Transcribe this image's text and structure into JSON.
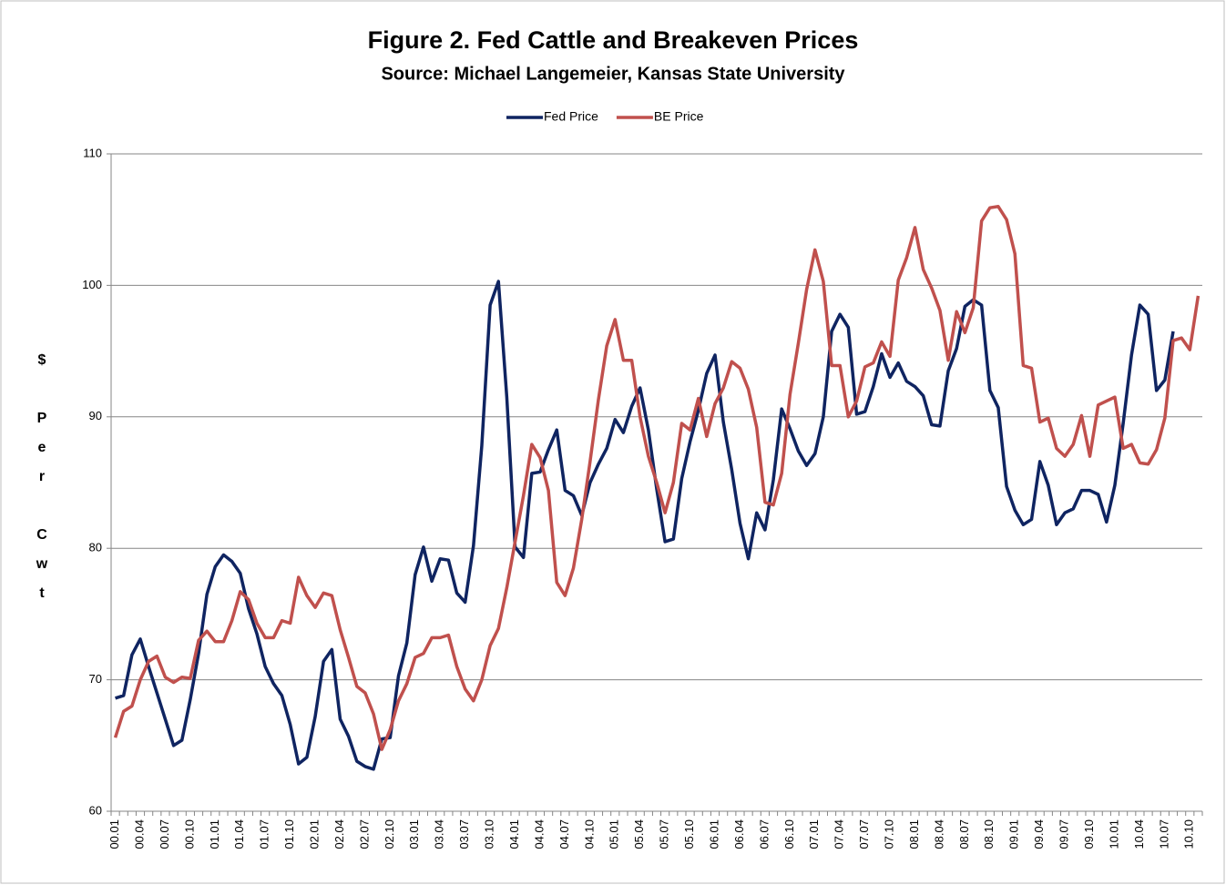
{
  "chart_data": {
    "type": "line",
    "title": "Figure 2.  Fed Cattle and Breakeven Prices",
    "subtitle": "Source:  Michael Langemeier, Kansas State University",
    "y_label": "$ Per Cwt",
    "categories": [
      "00.01",
      null,
      null,
      "00.04",
      null,
      null,
      "00.07",
      null,
      null,
      "00.10",
      null,
      null,
      "01.01",
      null,
      null,
      "01.04",
      null,
      null,
      "01.07",
      null,
      null,
      "01.10",
      null,
      null,
      "02.01",
      null,
      null,
      "02.04",
      null,
      null,
      "02.07",
      null,
      null,
      "02.10",
      null,
      null,
      "03.01",
      null,
      null,
      "03.04",
      null,
      null,
      "03.07",
      null,
      null,
      "03.10",
      null,
      null,
      "04.01",
      null,
      null,
      "04.04",
      null,
      null,
      "04.07",
      null,
      null,
      "04.10",
      null,
      null,
      "05.01",
      null,
      null,
      "05.04",
      null,
      null,
      "05.07",
      null,
      null,
      "05.10",
      null,
      null,
      "06.01",
      null,
      null,
      "06.04",
      null,
      null,
      "06.07",
      null,
      null,
      "06.10",
      null,
      null,
      "07.01",
      null,
      null,
      "07.04",
      null,
      null,
      "07.07",
      null,
      null,
      "07.10",
      null,
      null,
      "08.01",
      null,
      null,
      "08.04",
      null,
      null,
      "08.07",
      null,
      null,
      "08.10",
      null,
      null,
      "09.01",
      null,
      null,
      "09.04",
      null,
      null,
      "09.07",
      null,
      null,
      "09.10",
      null,
      null,
      "10.01",
      null,
      null,
      "10.04",
      null,
      null,
      "10.07",
      null,
      null,
      "10.10",
      null
    ],
    "series": [
      {
        "name": "Fed Price",
        "color": "#0f2461",
        "values": [
          68.6,
          68.8,
          71.9,
          73.1,
          71.0,
          69.0,
          67.0,
          65.0,
          65.4,
          68.5,
          72.0,
          76.5,
          78.6,
          79.5,
          79.0,
          78.1,
          75.4,
          73.5,
          71.0,
          69.7,
          68.8,
          66.6,
          63.6,
          64.1,
          67.2,
          71.4,
          72.3,
          67.0,
          65.7,
          63.8,
          63.4,
          63.2,
          65.5,
          65.6,
          70.3,
          72.8,
          78.0,
          80.1,
          77.5,
          79.2,
          79.1,
          76.6,
          75.9,
          80.2,
          87.8,
          98.5,
          100.3,
          91.5,
          80.1,
          79.3,
          85.7,
          85.8,
          87.5,
          89.0,
          84.4,
          84.0,
          82.5,
          85.0,
          86.4,
          87.6,
          89.8,
          88.8,
          90.8,
          92.2,
          89.0,
          84.5,
          80.5,
          80.7,
          85.3,
          88.1,
          90.5,
          93.3,
          94.7,
          89.6,
          86.0,
          81.9,
          79.2,
          82.7,
          81.4,
          85.2,
          90.6,
          89.1,
          87.4,
          86.3,
          87.2,
          90.0,
          96.5,
          97.8,
          96.8,
          90.2,
          90.4,
          92.3,
          94.8,
          93.0,
          94.1,
          92.7,
          92.3,
          91.6,
          89.4,
          89.3,
          93.5,
          95.2,
          98.4,
          98.9,
          98.5,
          92.0,
          90.7,
          84.7,
          82.9,
          81.8,
          82.2,
          86.6,
          84.8,
          81.8,
          82.7,
          83.0,
          84.4,
          84.4,
          84.1,
          82.0,
          84.8,
          89.5,
          94.7,
          98.5,
          97.8,
          92.0,
          92.8,
          96.5,
          null,
          null,
          null
        ]
      },
      {
        "name": "BE Price",
        "color": "#c0504d",
        "values": [
          65.6,
          67.6,
          68.0,
          70.0,
          71.4,
          71.8,
          70.2,
          69.8,
          70.2,
          70.1,
          73.0,
          73.7,
          72.9,
          72.9,
          74.5,
          76.7,
          76.1,
          74.3,
          73.2,
          73.2,
          74.5,
          74.3,
          77.8,
          76.4,
          75.5,
          76.6,
          76.4,
          73.8,
          71.7,
          69.5,
          69.0,
          67.4,
          64.7,
          66.2,
          68.4,
          69.7,
          71.7,
          72.0,
          73.2,
          73.2,
          73.4,
          71.0,
          69.3,
          68.4,
          70.0,
          72.6,
          73.9,
          77.0,
          80.5,
          84.0,
          87.9,
          86.9,
          84.4,
          77.4,
          76.4,
          78.5,
          82.2,
          86.6,
          91.3,
          95.4,
          97.4,
          94.3,
          94.3,
          90.0,
          87.0,
          85.0,
          82.7,
          85.0,
          89.5,
          89.0,
          91.4,
          88.5,
          91.0,
          92.2,
          94.2,
          93.7,
          92.1,
          89.2,
          83.5,
          83.3,
          85.7,
          91.7,
          95.6,
          99.7,
          102.7,
          100.3,
          93.9,
          93.9,
          90.0,
          91.2,
          93.8,
          94.1,
          95.7,
          94.6,
          100.4,
          102.1,
          104.4,
          101.2,
          99.8,
          98.1,
          94.3,
          98.0,
          96.4,
          98.3,
          104.9,
          105.9,
          106.0,
          105.0,
          102.4,
          93.9,
          93.7,
          89.6,
          89.9,
          87.6,
          87.0,
          87.9,
          90.1,
          87.0,
          90.9,
          91.2,
          91.5,
          87.6,
          87.9,
          86.5,
          86.4,
          87.5,
          89.9,
          95.8,
          96.0,
          95.1,
          99.2
        ]
      }
    ],
    "ylim": [
      60,
      110
    ],
    "yticks": [
      60,
      70,
      80,
      90,
      100,
      110
    ],
    "grid": true,
    "legend": "top"
  }
}
